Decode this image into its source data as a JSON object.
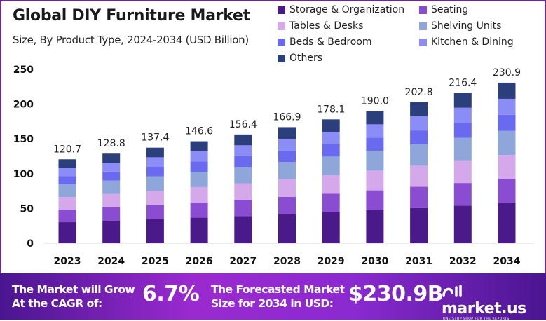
{
  "chart_data": {
    "type": "bar",
    "stacked": true,
    "title": "Global DIY Furniture Market",
    "subtitle": "Size, By Product Type, 2024-2034 (USD Billion)",
    "categories": [
      "2023",
      "2024",
      "2025",
      "2026",
      "2027",
      "2028",
      "2029",
      "2030",
      "2031",
      "2032",
      "2034"
    ],
    "totals": [
      "120.7",
      "128.8",
      "137.4",
      "146.6",
      "156.4",
      "166.9",
      "178.1",
      "190.0",
      "202.8",
      "216.4",
      "230.9"
    ],
    "ylim": [
      0,
      250
    ],
    "yticks": [
      "0",
      "50",
      "100",
      "150",
      "200",
      "250"
    ],
    "grid": false,
    "legend_position": "top-right",
    "series": [
      {
        "name": "Storage & Organization",
        "color": "#4b1a8a",
        "values": [
          30.2,
          32.2,
          34.4,
          36.7,
          39.1,
          41.7,
          44.5,
          47.5,
          50.7,
          54.1,
          57.7
        ]
      },
      {
        "name": "Seating",
        "color": "#8a4cd0",
        "values": [
          18.1,
          19.3,
          20.6,
          22.0,
          23.5,
          25.0,
          26.7,
          28.5,
          30.4,
          32.5,
          34.6
        ]
      },
      {
        "name": "Tables & Desks",
        "color": "#d4a8ea",
        "values": [
          18.1,
          19.3,
          20.6,
          22.0,
          23.5,
          25.0,
          26.7,
          28.5,
          30.4,
          32.5,
          34.6
        ]
      },
      {
        "name": "Shelving Units",
        "color": "#8fa6da",
        "values": [
          18.1,
          19.3,
          20.6,
          22.0,
          23.5,
          25.0,
          26.7,
          28.5,
          30.4,
          32.5,
          34.6
        ]
      },
      {
        "name": "Beds & Bedroom",
        "color": "#6a6af0",
        "values": [
          12.1,
          12.9,
          13.7,
          14.7,
          15.6,
          16.7,
          17.8,
          19.0,
          20.3,
          21.6,
          23.1
        ]
      },
      {
        "name": "Kitchen & Dining",
        "color": "#8c8cf6",
        "values": [
          12.1,
          12.9,
          13.7,
          14.7,
          15.6,
          16.7,
          17.8,
          19.0,
          20.3,
          21.6,
          23.1
        ]
      },
      {
        "name": "Others",
        "color": "#2a3f7c",
        "values": [
          12.0,
          12.9,
          13.8,
          14.5,
          15.6,
          16.8,
          17.9,
          19.0,
          20.3,
          21.6,
          23.2
        ]
      }
    ]
  },
  "footer": {
    "cagr_label_1": "The Market will Grow",
    "cagr_label_2": "At the CAGR of:",
    "cagr_value": "6.7%",
    "forecast_label_1": "The Forecasted Market",
    "forecast_label_2": "Size for 2034 in USD:",
    "forecast_value": "$230.9B",
    "brand": "market.us",
    "brand_tagline": "ONE STOP SHOP FOR THE REPORTS"
  }
}
